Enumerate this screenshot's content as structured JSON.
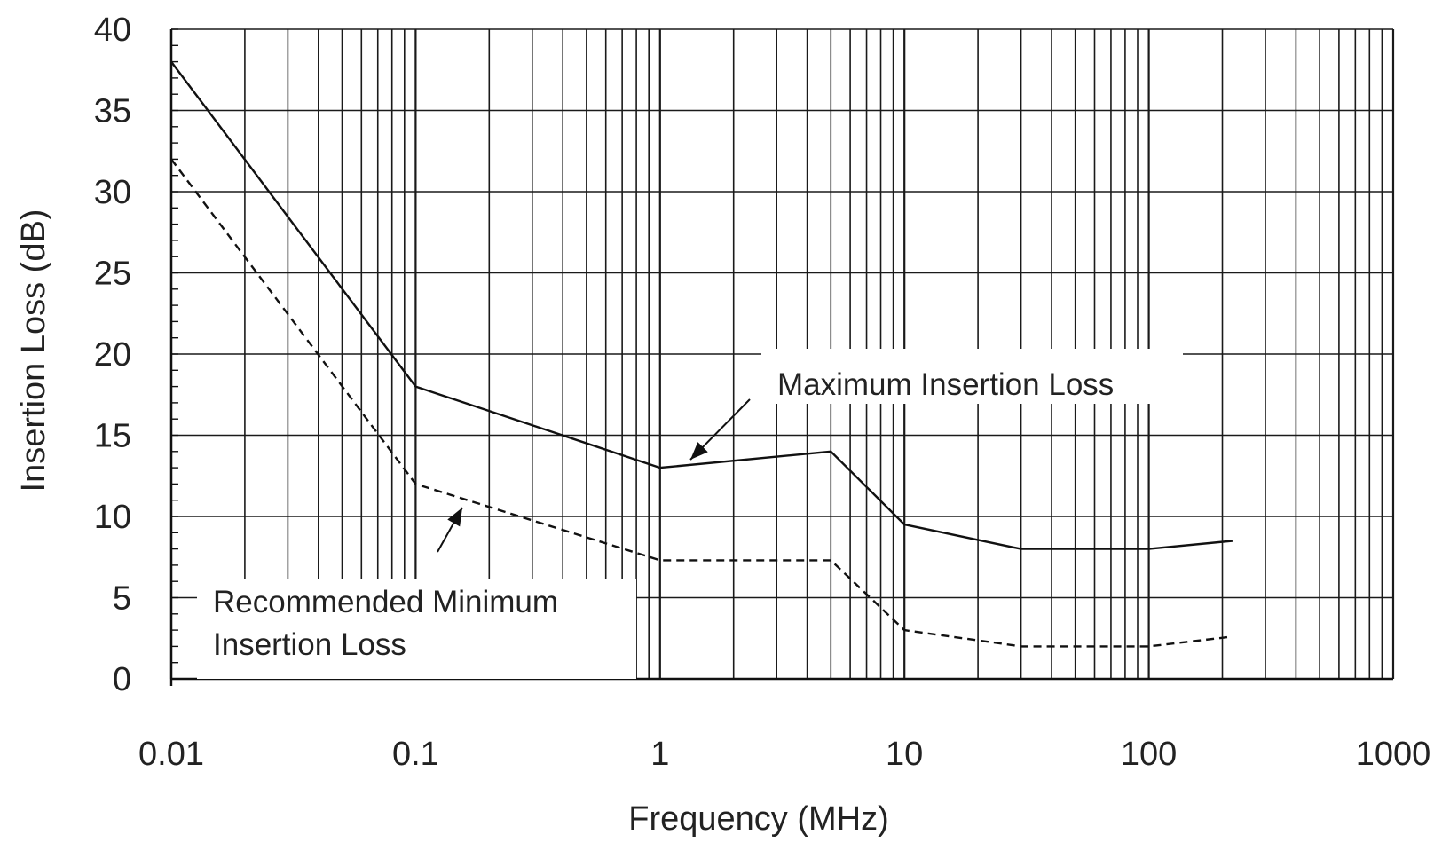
{
  "chart_data": {
    "type": "line",
    "xscale": "log",
    "xlabel": "Frequency (MHz)",
    "ylabel": "Insertion Loss (dB)",
    "xlim": [
      0.01,
      1000
    ],
    "ylim": [
      0,
      40
    ],
    "grid": true,
    "x_ticks": [
      "0.01",
      "0.1",
      "1",
      "10",
      "100",
      "1000"
    ],
    "y_ticks": [
      "0",
      "5",
      "10",
      "15",
      "20",
      "25",
      "30",
      "35",
      "40"
    ],
    "series": [
      {
        "name": "Maximum Insertion Loss",
        "style": "solid",
        "points": [
          [
            0.01,
            38
          ],
          [
            0.1,
            18
          ],
          [
            1,
            13
          ],
          [
            5,
            14
          ],
          [
            10,
            9.5
          ],
          [
            30,
            8
          ],
          [
            100,
            8
          ],
          [
            220,
            8.5
          ]
        ]
      },
      {
        "name": "Recommended Minimum Insertion Loss",
        "style": "dashed",
        "points": [
          [
            0.01,
            32
          ],
          [
            0.1,
            12
          ],
          [
            1,
            7.3
          ],
          [
            5,
            7.3
          ],
          [
            10,
            3
          ],
          [
            30,
            2
          ],
          [
            100,
            2
          ],
          [
            220,
            2.6
          ]
        ]
      }
    ],
    "annotations": [
      {
        "lines": [
          "Maximum Insertion Loss"
        ],
        "series": 0
      },
      {
        "lines": [
          "Recommended Minimum",
          "Insertion Loss"
        ],
        "series": 1
      }
    ]
  }
}
